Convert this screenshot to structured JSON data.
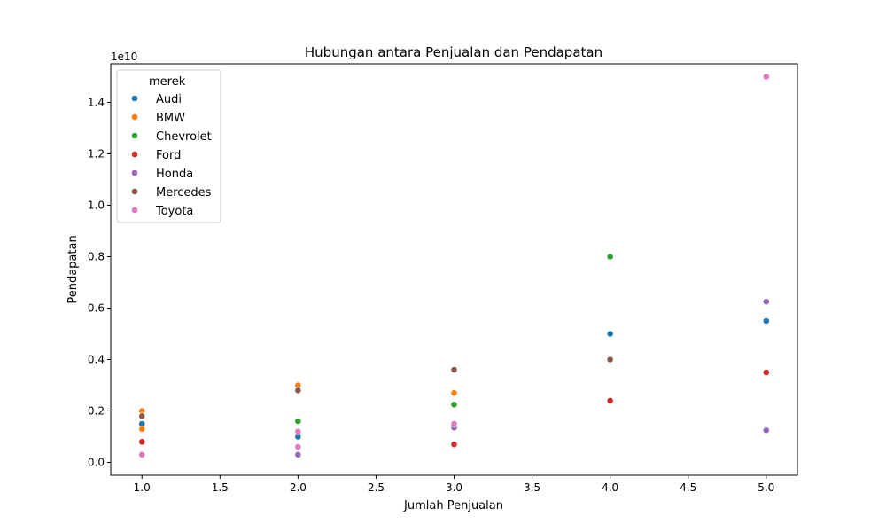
{
  "chart_data": {
    "type": "scatter",
    "title": "Hubungan antara Penjualan dan Pendapatan",
    "xlabel": "Jumlah Penjualan",
    "ylabel": "Pendapatan",
    "y_offset_text": "1e10",
    "xlim": [
      0.8,
      5.2
    ],
    "ylim": [
      -0.05,
      1.55
    ],
    "x_ticks": [
      1.0,
      1.5,
      2.0,
      2.5,
      3.0,
      3.5,
      4.0,
      4.5,
      5.0
    ],
    "x_tick_labels": [
      "1.0",
      "1.5",
      "2.0",
      "2.5",
      "3.0",
      "3.5",
      "4.0",
      "4.5",
      "5.0"
    ],
    "y_ticks": [
      0.0,
      0.2,
      0.4,
      0.6,
      0.8,
      1.0,
      1.2,
      1.4
    ],
    "y_tick_labels": [
      "0.0",
      "0.2",
      "0.4",
      "0.6",
      "0.8",
      "1.0",
      "1.2",
      "1.4"
    ],
    "grid": false,
    "legend": {
      "title": "merek",
      "position": "top-left"
    },
    "series": [
      {
        "name": "Audi",
        "color": "#1f77b4",
        "points": [
          [
            1,
            0.15
          ],
          [
            2,
            0.1
          ],
          [
            4,
            0.5
          ],
          [
            5,
            0.55
          ]
        ]
      },
      {
        "name": "BMW",
        "color": "#ff7f0e",
        "points": [
          [
            1,
            0.2
          ],
          [
            1,
            0.13
          ],
          [
            2,
            0.3
          ],
          [
            3,
            0.27
          ]
        ]
      },
      {
        "name": "Chevrolet",
        "color": "#2ca02c",
        "points": [
          [
            2,
            0.16
          ],
          [
            3,
            0.225
          ],
          [
            4,
            0.8
          ]
        ]
      },
      {
        "name": "Ford",
        "color": "#d62728",
        "points": [
          [
            1,
            0.08
          ],
          [
            3,
            0.07
          ],
          [
            4,
            0.24
          ],
          [
            5,
            0.35
          ]
        ]
      },
      {
        "name": "Honda",
        "color": "#9467bd",
        "points": [
          [
            2,
            0.03
          ],
          [
            3,
            0.135
          ],
          [
            5,
            0.625
          ],
          [
            5,
            0.125
          ]
        ]
      },
      {
        "name": "Mercedes",
        "color": "#8c564b",
        "points": [
          [
            1,
            0.18
          ],
          [
            2,
            0.28
          ],
          [
            3,
            0.36
          ],
          [
            4,
            0.4
          ]
        ]
      },
      {
        "name": "Toyota",
        "color": "#e377c2",
        "points": [
          [
            1,
            0.03
          ],
          [
            2,
            0.06
          ],
          [
            2,
            0.12
          ],
          [
            3,
            0.15
          ],
          [
            5,
            1.5
          ]
        ]
      }
    ]
  }
}
